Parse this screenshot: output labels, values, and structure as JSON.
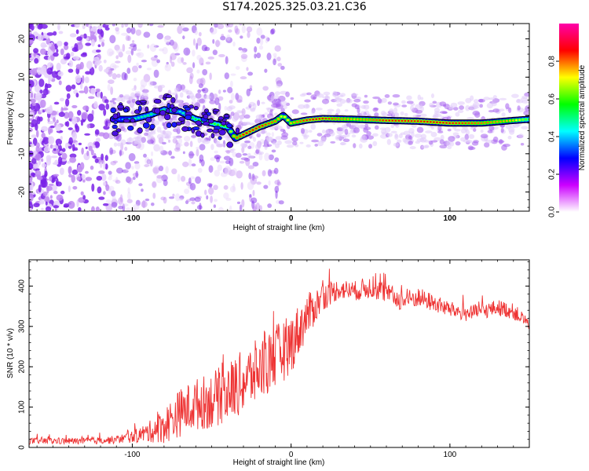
{
  "title": "S174.2025.325.03.21.C36",
  "chart_data": [
    {
      "type": "heatmap",
      "title": "S174.2025.325.03.21.C36",
      "xlabel": "Height of straight line (km)",
      "ylabel": "Frequency (Hz)",
      "xlim": [
        -165,
        150
      ],
      "ylim": [
        -25,
        24
      ],
      "xticks": [
        {
          "value": -100,
          "label": "-100"
        },
        {
          "value": 0,
          "label": "0"
        },
        {
          "value": 100,
          "label": "100"
        }
      ],
      "yticks": [
        {
          "value": 20,
          "label": "20"
        },
        {
          "value": 10,
          "label": "10"
        },
        {
          "value": 0,
          "label": "0"
        },
        {
          "value": -10,
          "label": "-10"
        },
        {
          "value": -20,
          "label": "-20"
        }
      ],
      "colorbar": {
        "label": "Normalized spectral amplitude",
        "range": [
          0,
          1
        ],
        "ticks": [
          {
            "value": 0.0,
            "label": "0.0"
          },
          {
            "value": 0.2,
            "label": "0.2"
          },
          {
            "value": 0.4,
            "label": "0.4"
          },
          {
            "value": 0.6,
            "label": "0.6"
          },
          {
            "value": 0.8,
            "label": "0.8"
          }
        ],
        "colors": [
          "#ffffff",
          "#cc00ff",
          "#0000ff",
          "#00ffff",
          "#00ff00",
          "#ffff00",
          "#ff0000",
          "#ff00aa"
        ]
      },
      "ridge": {
        "x": [
          -112,
          -100,
          -90,
          -80,
          -70,
          -60,
          -50,
          -40,
          -35,
          -30,
          -20,
          -10,
          -5,
          0,
          10,
          20,
          40,
          60,
          80,
          100,
          120,
          140,
          150
        ],
        "freq": [
          -1,
          -1,
          0,
          1.5,
          1,
          -1,
          -2,
          -3,
          -6,
          -5,
          -3,
          -1.5,
          0,
          -2,
          -1.2,
          -0.8,
          -1,
          -1.3,
          -1.5,
          -2,
          -2,
          -1.3,
          -1
        ],
        "amplitude": [
          0.3,
          0.45,
          0.5,
          0.5,
          0.45,
          0.55,
          0.6,
          0.6,
          0.8,
          0.85,
          0.85,
          0.8,
          0.7,
          0.75,
          0.85,
          0.85,
          0.75,
          0.85,
          0.85,
          0.85,
          0.8,
          0.75,
          0.6
        ]
      }
    },
    {
      "type": "line",
      "xlabel": "Height of straight line (km)",
      "ylabel": "SNR (10 * v/v)",
      "xlim": [
        -165,
        150
      ],
      "ylim": [
        0,
        465
      ],
      "xticks": [
        {
          "value": -100,
          "label": "-100"
        },
        {
          "value": 0,
          "label": "0"
        },
        {
          "value": 100,
          "label": "100"
        }
      ],
      "yticks": [
        {
          "value": 0,
          "label": "0"
        },
        {
          "value": 100,
          "label": "100"
        },
        {
          "value": 200,
          "label": "200"
        },
        {
          "value": 300,
          "label": "300"
        },
        {
          "value": 400,
          "label": "400"
        }
      ],
      "color": "#ee3333",
      "series": [
        {
          "name": "SNR",
          "x": [
            -165,
            -150,
            -130,
            -110,
            -100,
            -90,
            -80,
            -70,
            -60,
            -50,
            -40,
            -30,
            -20,
            -10,
            0,
            10,
            20,
            30,
            40,
            50,
            60,
            70,
            80,
            90,
            100,
            110,
            120,
            130,
            140,
            150
          ],
          "y": [
            15,
            15,
            15,
            18,
            25,
            35,
            50,
            80,
            100,
            110,
            130,
            155,
            185,
            215,
            250,
            320,
            370,
            390,
            385,
            395,
            380,
            360,
            370,
            355,
            340,
            330,
            335,
            345,
            335,
            305
          ],
          "noise": [
            8,
            8,
            8,
            10,
            15,
            25,
            45,
            60,
            65,
            70,
            75,
            80,
            80,
            80,
            75,
            55,
            35,
            25,
            25,
            28,
            25,
            25,
            25,
            22,
            20,
            20,
            20,
            20,
            20,
            15
          ]
        }
      ]
    }
  ]
}
